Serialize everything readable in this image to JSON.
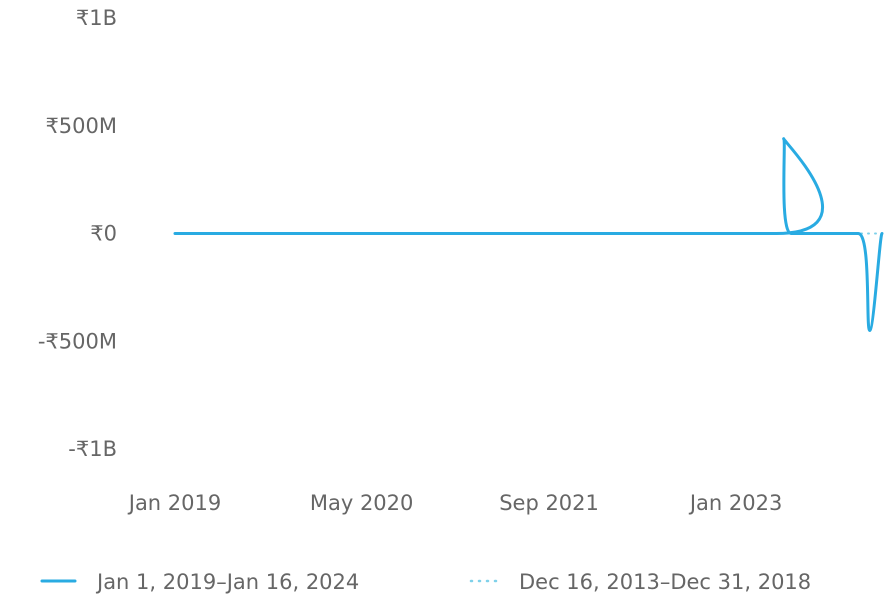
{
  "chart_data": {
    "type": "line",
    "title": "",
    "xlabel": "",
    "ylabel": "",
    "x_ticks": [
      "Jan 2019",
      "May 2020",
      "Sep 2021",
      "Jan 2023"
    ],
    "y_ticks": [
      "₹1B",
      "₹500M",
      "₹0",
      "-₹500M",
      "-₹1B"
    ],
    "y_tick_values": [
      1000000000,
      500000000,
      0,
      -500000000,
      -1000000000
    ],
    "ylim": [
      -1000000000,
      1000000000
    ],
    "xlim": [
      "2019-01-01",
      "2024-01-16"
    ],
    "grid": false,
    "legend_position": "bottom",
    "series": [
      {
        "name": "Jan 1, 2019–Jan 16, 2024",
        "color": "#29abe2",
        "style": "solid",
        "points": [
          {
            "x": "2019-01-01",
            "y": 0
          },
          {
            "x": "2023-04-15",
            "y": 0
          },
          {
            "x": "2023-05-05",
            "y": 440000000
          },
          {
            "x": "2023-05-25",
            "y": 0
          },
          {
            "x": "2023-11-15",
            "y": 0
          },
          {
            "x": "2023-12-15",
            "y": -450000000
          },
          {
            "x": "2024-01-16",
            "y": 0
          }
        ]
      },
      {
        "name": "Dec 16, 2013–Dec 31, 2018",
        "color": "#7fd1ea",
        "style": "dotted",
        "points": [
          {
            "x": "2019-01-01",
            "y": 0
          },
          {
            "x": "2024-01-16",
            "y": 0
          }
        ]
      }
    ]
  }
}
